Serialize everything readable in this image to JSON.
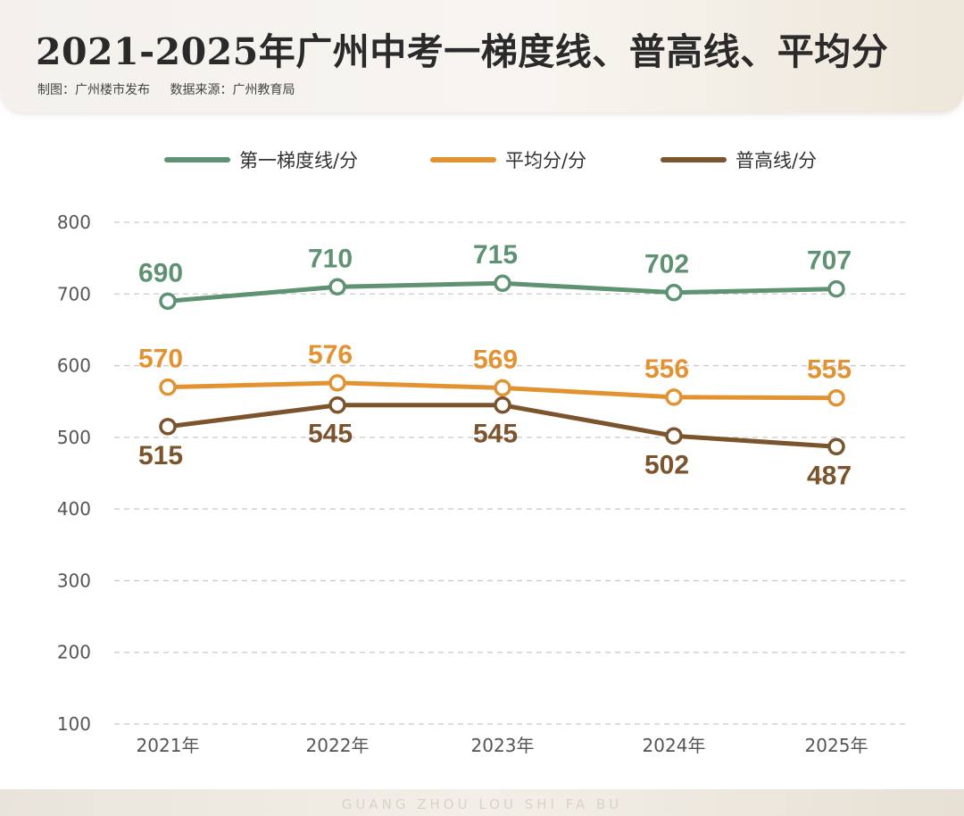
{
  "header": {
    "title": "2021-2025年广州中考一梯度线、普高线、平均分",
    "credit_maker": "制图：广州楼市发布",
    "credit_source": "数据来源：广州教育局"
  },
  "footer": {
    "watermark": "GUANG ZHOU LOU SHI FA BU"
  },
  "chart_data": {
    "type": "line",
    "categories": [
      "2021年",
      "2022年",
      "2023年",
      "2024年",
      "2025年"
    ],
    "series": [
      {
        "name": "第一梯度线/分",
        "color": "#5e9272",
        "values": [
          690,
          710,
          715,
          702,
          707
        ],
        "label_pos": "above"
      },
      {
        "name": "平均分/分",
        "color": "#e39232",
        "values": [
          570,
          576,
          569,
          556,
          555
        ],
        "label_pos": "above"
      },
      {
        "name": "普高线/分",
        "color": "#7a542c",
        "values": [
          515,
          545,
          545,
          502,
          487
        ],
        "label_pos": "below"
      }
    ],
    "yticks": [
      100,
      200,
      300,
      400,
      500,
      600,
      700,
      800
    ],
    "ylim": [
      100,
      800
    ],
    "grid": true,
    "grid_style": "dashed",
    "legend_position": "top-center",
    "title": "",
    "xlabel": "",
    "ylabel": ""
  }
}
